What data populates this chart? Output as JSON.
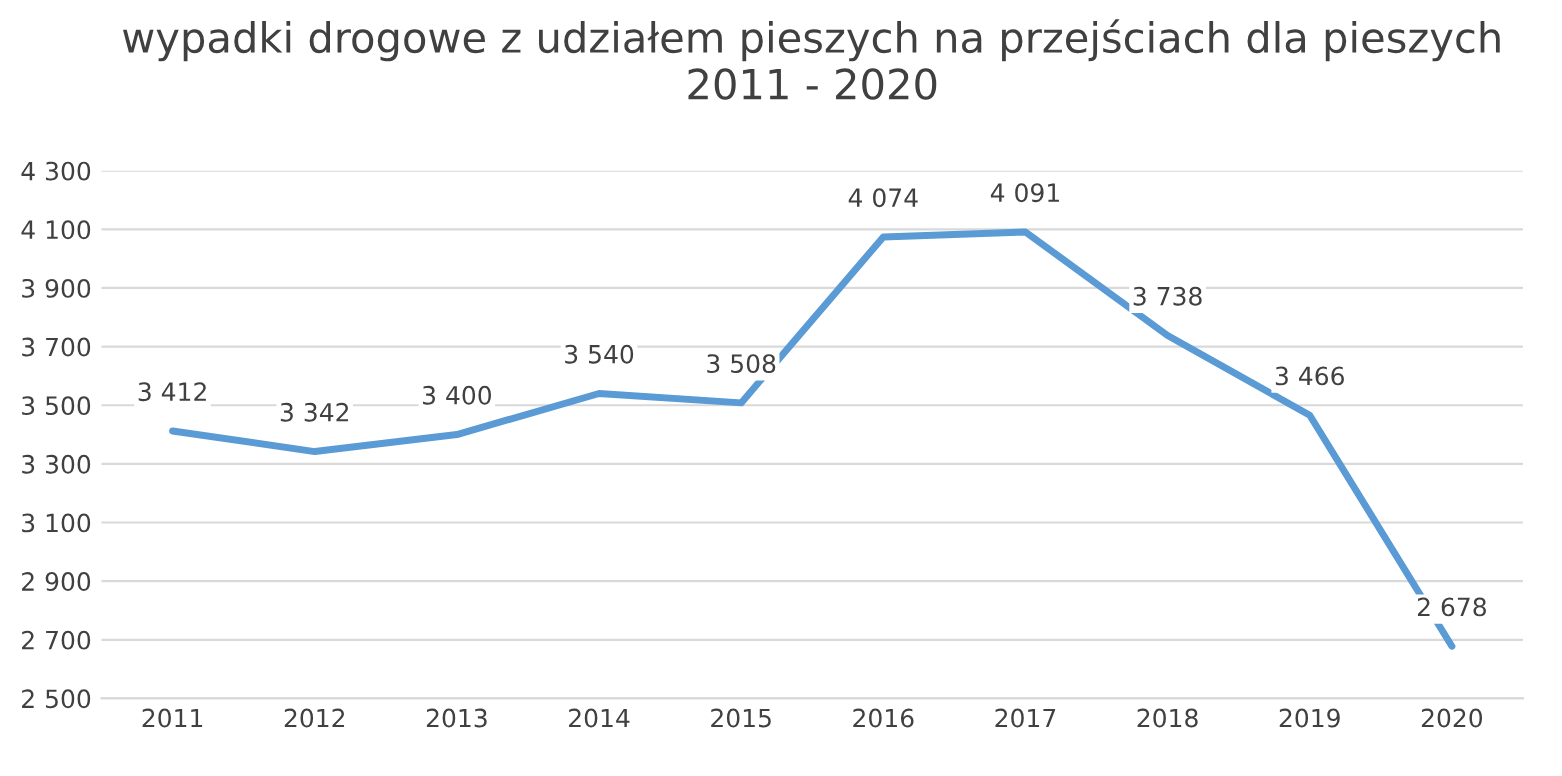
{
  "chart_data": {
    "type": "line",
    "title": "wypadki drogowe z udziałem pieszych na przejściach dla pieszych 2011 - 2020",
    "categories": [
      "2011",
      "2012",
      "2013",
      "2014",
      "2015",
      "2016",
      "2017",
      "2018",
      "2019",
      "2020"
    ],
    "series": [
      {
        "color": "#5b9bd5",
        "values": [
          3412,
          3342,
          3400,
          3540,
          3508,
          4074,
          4091,
          3738,
          3466,
          2678
        ],
        "value_labels": [
          "3 412",
          "3 342",
          "3 400",
          "3 540",
          "3 508",
          "4 074",
          "4 091",
          "3 738",
          "3 466",
          "2 678"
        ]
      }
    ],
    "ylim": [
      2500,
      4300
    ],
    "yticks": [
      {
        "value": 2500,
        "label": "2 500"
      },
      {
        "value": 2700,
        "label": "2 700"
      },
      {
        "value": 2900,
        "label": "2 900"
      },
      {
        "value": 3100,
        "label": "3 100"
      },
      {
        "value": 3300,
        "label": "3 300"
      },
      {
        "value": 3500,
        "label": "3 500"
      },
      {
        "value": 3700,
        "label": "3 700"
      },
      {
        "value": 3900,
        "label": "3 900"
      },
      {
        "value": 4100,
        "label": "4 100"
      },
      {
        "value": 4300,
        "label": "4 300"
      }
    ],
    "grid": "y",
    "marker": "none",
    "line_style": "solid",
    "legend": false
  }
}
